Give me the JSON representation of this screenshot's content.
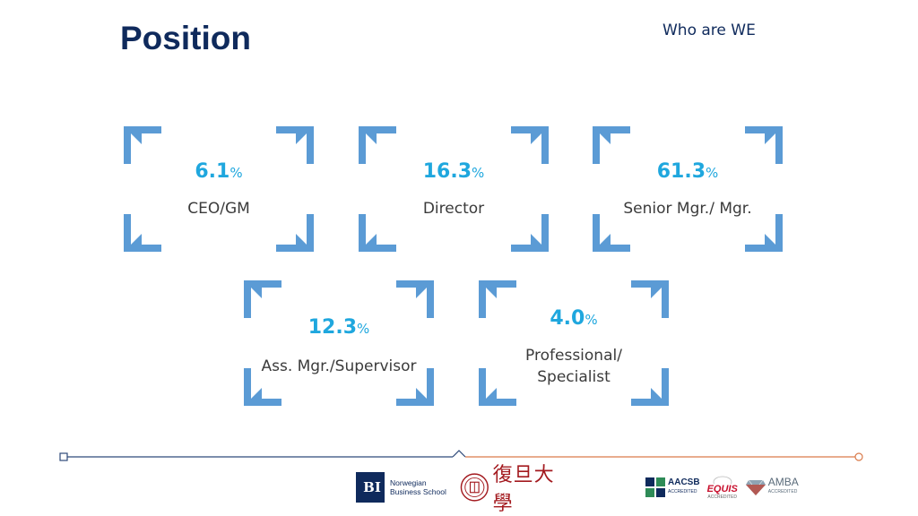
{
  "header": {
    "title": "Position",
    "subtitle": "Who are WE"
  },
  "colors": {
    "title": "#0f2a5c",
    "accent": "#1fa7de",
    "bracket": "#5b9bd5",
    "footer_left": "#2e4a7a",
    "footer_right": "#d97a4a"
  },
  "positions": [
    {
      "value": "6.1",
      "unit": "%",
      "label": "CEO/GM"
    },
    {
      "value": "16.3",
      "unit": "%",
      "label": "Director"
    },
    {
      "value": "61.3",
      "unit": "%",
      "label": "Senior Mgr./ Mgr."
    },
    {
      "value": "12.3",
      "unit": "%",
      "label": "Ass. Mgr./Supervisor"
    },
    {
      "value": "4.0",
      "unit": "%",
      "label": "Professional/\nSpecialist"
    }
  ],
  "footer": {
    "bi": {
      "mark": "BI",
      "text": "Norwegian\nBusiness School"
    },
    "fudan": {
      "text": "復旦大學"
    },
    "aacsb": {
      "name": "AACSB",
      "sub": "ACCREDITED"
    },
    "equis": {
      "name": "EQUIS",
      "sub": "ACCREDITED"
    },
    "amba": {
      "name": "AMBA",
      "sub": "ACCREDITED"
    }
  }
}
